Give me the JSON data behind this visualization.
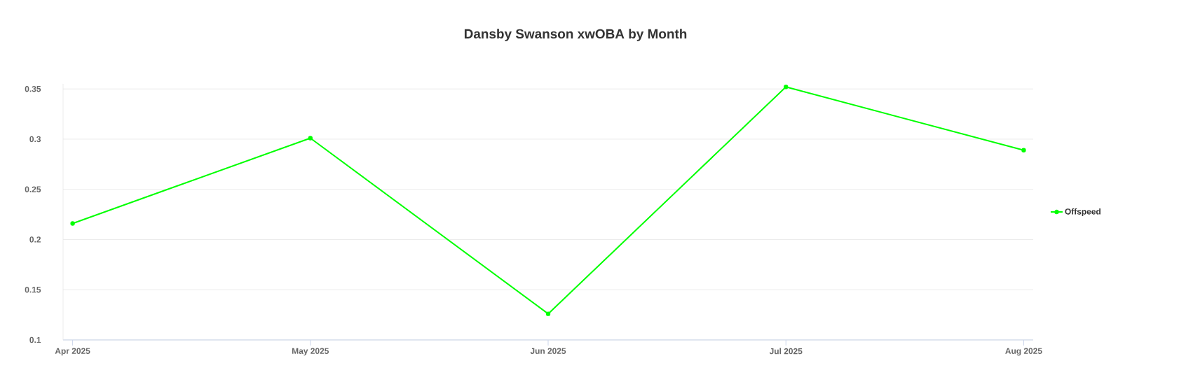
{
  "chart_data": {
    "type": "line",
    "title": "Dansby Swanson xwOBA by Month",
    "categories": [
      "Apr 2025",
      "May 2025",
      "Jun 2025",
      "Jul 2025",
      "Aug 2025"
    ],
    "series": [
      {
        "name": "Offspeed",
        "color": "#00ff00",
        "values": [
          0.216,
          0.301,
          0.126,
          0.352,
          0.289
        ]
      }
    ],
    "ylim": [
      0.1,
      0.355
    ],
    "yticks": [
      0.1,
      0.15,
      0.2,
      0.25,
      0.3,
      0.35
    ],
    "grid": "y",
    "legend": "right",
    "marker": "circle",
    "line_style": "solid"
  }
}
